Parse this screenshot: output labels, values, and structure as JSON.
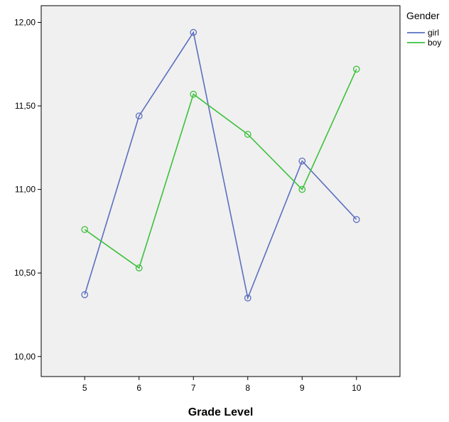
{
  "chart_data": {
    "type": "line",
    "title": "",
    "xlabel": "Grade Level",
    "ylabel": "",
    "x": [
      5,
      6,
      7,
      8,
      9,
      10
    ],
    "x_tick_labels": [
      "5",
      "6",
      "7",
      "8",
      "9",
      "10"
    ],
    "xlim": [
      4.2,
      10.8
    ],
    "ylim": [
      9.88,
      12.1
    ],
    "y_ticks": [
      10.0,
      10.5,
      11.0,
      11.5,
      12.0
    ],
    "y_tick_labels": [
      "10,00",
      "10,50",
      "11,00",
      "11,50",
      "12,00"
    ],
    "grid": false,
    "legend": {
      "title": "Gender",
      "placement": "right",
      "entries": [
        "girl",
        "boy"
      ]
    },
    "series": [
      {
        "name": "girl",
        "color": "#5b6fbf",
        "marker": "open-circle",
        "values": [
          10.37,
          11.44,
          11.94,
          10.35,
          11.17,
          10.82
        ]
      },
      {
        "name": "boy",
        "color": "#3cc13c",
        "marker": "open-circle",
        "values": [
          10.76,
          10.53,
          11.57,
          11.33,
          11.0,
          11.72
        ]
      }
    ],
    "plot_background": "#f0f0f0"
  }
}
